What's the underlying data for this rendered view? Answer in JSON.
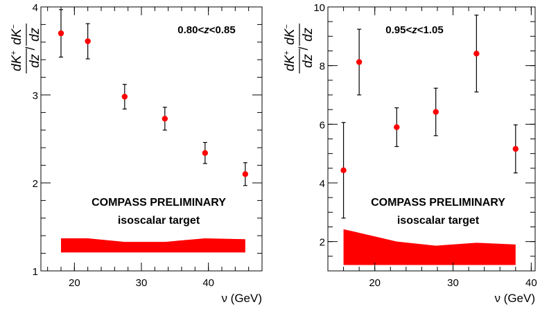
{
  "chart_data": [
    {
      "type": "scatter",
      "panel": "left",
      "annotation": "0.80<z<0.85",
      "ylabel": "dK+/dz / dK-/dz",
      "xlabel": "ν (GeV)",
      "xlim": [
        15,
        48
      ],
      "ylim": [
        1,
        4
      ],
      "xticks": [
        20,
        30,
        40
      ],
      "yticks": [
        1,
        2,
        3,
        4
      ],
      "x": [
        18.0,
        22.0,
        27.5,
        33.5,
        39.5,
        45.5
      ],
      "y": [
        3.7,
        3.61,
        2.98,
        2.73,
        2.34,
        2.1
      ],
      "yerr": [
        0.27,
        0.2,
        0.14,
        0.13,
        0.12,
        0.13
      ],
      "labels": [
        "COMPASS PRELIMINARY",
        "isoscalar target"
      ],
      "systematic_band": {
        "x": [
          18.0,
          22.0,
          27.5,
          33.5,
          39.5,
          45.5
        ],
        "upper": [
          1.37,
          1.37,
          1.33,
          1.33,
          1.37,
          1.36
        ],
        "lower": [
          1.21,
          1.21,
          1.21,
          1.21,
          1.21,
          1.21
        ]
      },
      "grid": false,
      "marker_color": "#ff0000",
      "band_color": "#ff0000"
    },
    {
      "type": "scatter",
      "panel": "right",
      "annotation": "0.95<z<1.05",
      "ylabel": "dK+/dz / dK-/dz",
      "xlabel": "ν (GeV)",
      "xlim": [
        14,
        40.5
      ],
      "ylim": [
        1,
        10
      ],
      "xticks": [
        20,
        30,
        40
      ],
      "yticks": [
        2,
        4,
        6,
        8,
        10
      ],
      "x": [
        16.0,
        18.0,
        22.8,
        27.8,
        33.0,
        38.0
      ],
      "y": [
        4.43,
        8.12,
        5.9,
        6.42,
        8.41,
        5.16
      ],
      "yerr": [
        1.63,
        1.12,
        0.66,
        0.81,
        1.31,
        0.82
      ],
      "labels": [
        "COMPASS PRELIMINARY",
        "isoscalar target"
      ],
      "systematic_band": {
        "x": [
          16.0,
          18.0,
          22.8,
          27.8,
          33.0,
          38.0
        ],
        "upper": [
          2.42,
          2.3,
          2.0,
          1.86,
          1.96,
          1.9
        ],
        "lower": [
          1.2,
          1.2,
          1.2,
          1.2,
          1.2,
          1.2
        ]
      },
      "grid": false,
      "marker_color": "#ff0000",
      "band_color": "#ff0000"
    }
  ]
}
